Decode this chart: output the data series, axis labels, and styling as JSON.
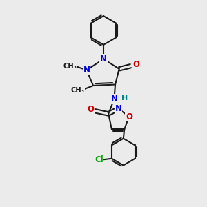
{
  "background_color": "#ebebeb",
  "atom_colors": {
    "C": "#1a1a1a",
    "N": "#0000dd",
    "O": "#cc0000",
    "Cl": "#00aa00",
    "H": "#008888"
  },
  "bond_color": "#1a1a1a",
  "bond_width": 1.5,
  "font_size_main": 8.5,
  "font_size_methyl": 7.2,
  "font_size_h": 8.0
}
